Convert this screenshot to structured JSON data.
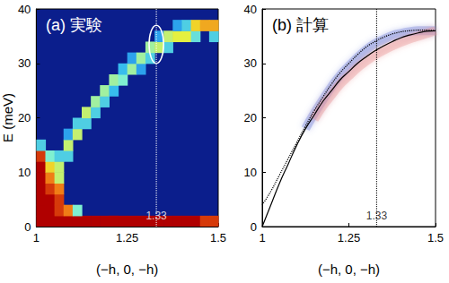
{
  "chart_data": [
    {
      "type": "heatmap",
      "title": "(a) 実験",
      "x_label": "(−h, 0, −h)",
      "y_label": "E (meV)",
      "xlim": [
        1,
        1.5
      ],
      "xticks": [
        1,
        1.25,
        1.5
      ],
      "ylim": [
        0,
        40
      ],
      "yticks": [
        0,
        10,
        20,
        30,
        40
      ],
      "color_range": [
        0,
        10
      ],
      "cells": [
        [
          1.0125,
          1,
          10
        ],
        [
          1.0375,
          1,
          10
        ],
        [
          1.0625,
          1,
          10
        ],
        [
          1.0875,
          1,
          10
        ],
        [
          1.1125,
          1,
          10
        ],
        [
          1.1375,
          1,
          10
        ],
        [
          1.1625,
          1,
          10
        ],
        [
          1.1875,
          1,
          10
        ],
        [
          1.2125,
          1,
          10
        ],
        [
          1.2375,
          1,
          10
        ],
        [
          1.2625,
          1,
          10
        ],
        [
          1.2875,
          1,
          10
        ],
        [
          1.3125,
          1,
          10
        ],
        [
          1.3375,
          1,
          10
        ],
        [
          1.3625,
          1,
          10
        ],
        [
          1.3875,
          1,
          10
        ],
        [
          1.4125,
          1,
          10
        ],
        [
          1.4375,
          1,
          10
        ],
        [
          1.4625,
          1,
          9
        ],
        [
          1.4875,
          1,
          9
        ],
        [
          1.0125,
          3,
          10
        ],
        [
          1.0125,
          5,
          10
        ],
        [
          1.0125,
          7,
          10
        ],
        [
          1.0125,
          9,
          10
        ],
        [
          1.0125,
          11,
          10
        ],
        [
          1.0125,
          13,
          9
        ],
        [
          1.0125,
          15,
          4
        ],
        [
          1.0375,
          3,
          10
        ],
        [
          1.0375,
          5,
          10
        ],
        [
          1.0375,
          7,
          9
        ],
        [
          1.0375,
          9,
          8
        ],
        [
          1.0375,
          11,
          7
        ],
        [
          1.0375,
          13,
          5
        ],
        [
          1.0625,
          3,
          9
        ],
        [
          1.0625,
          5,
          9
        ],
        [
          1.0625,
          7,
          8
        ],
        [
          1.0625,
          9,
          6
        ],
        [
          1.0625,
          11,
          6
        ],
        [
          1.0625,
          13,
          4
        ],
        [
          1.0875,
          3,
          8
        ],
        [
          1.0875,
          13,
          4
        ],
        [
          1.0875,
          15,
          6
        ],
        [
          1.0875,
          17,
          3
        ],
        [
          1.1125,
          3,
          5
        ],
        [
          1.1125,
          17,
          6
        ],
        [
          1.1125,
          19,
          4
        ],
        [
          1.1375,
          19,
          4
        ],
        [
          1.1375,
          21,
          6
        ],
        [
          1.1625,
          21,
          4
        ],
        [
          1.1625,
          23,
          5.5
        ],
        [
          1.1875,
          23,
          4
        ],
        [
          1.1875,
          25,
          5.5
        ],
        [
          1.2125,
          25,
          3.5
        ],
        [
          1.2125,
          27,
          5.5
        ],
        [
          1.2375,
          27,
          5
        ],
        [
          1.2375,
          29,
          3.5
        ],
        [
          1.2625,
          29,
          5.5
        ],
        [
          1.2625,
          31,
          3
        ],
        [
          1.2875,
          29,
          3
        ],
        [
          1.2875,
          31,
          5.5
        ],
        [
          1.3125,
          31,
          4
        ],
        [
          1.3125,
          33,
          5.5
        ],
        [
          1.3375,
          33,
          6
        ],
        [
          1.3375,
          35,
          3
        ],
        [
          1.3625,
          33,
          4
        ],
        [
          1.3625,
          35,
          6
        ],
        [
          1.3875,
          35,
          6.5
        ],
        [
          1.3875,
          37,
          3
        ],
        [
          1.4125,
          35,
          6.5
        ],
        [
          1.4125,
          37,
          4
        ],
        [
          1.4375,
          35,
          4.5
        ],
        [
          1.4375,
          37,
          7
        ],
        [
          1.4625,
          37,
          7.5
        ],
        [
          1.4875,
          35,
          4
        ],
        [
          1.4875,
          37,
          7.5
        ]
      ],
      "vline": {
        "x": 1.33,
        "color": "#ffffff"
      },
      "ellipse": {
        "x": 1.33,
        "y": 33.5,
        "width": 0.04,
        "height": 7,
        "color": "#ffffff"
      }
    },
    {
      "type": "line",
      "title": "(b) 計算",
      "x_label": "(−h, 0, −h)",
      "xlim": [
        1,
        1.5
      ],
      "xticks": [
        1,
        1.25,
        1.5
      ],
      "ylim": [
        0,
        40
      ],
      "yticks": [
        0,
        10,
        20,
        30,
        40
      ],
      "x": [
        1,
        1.025,
        1.05,
        1.075,
        1.1,
        1.125,
        1.15,
        1.175,
        1.2,
        1.225,
        1.25,
        1.275,
        1.3,
        1.325,
        1.35,
        1.375,
        1.4,
        1.425,
        1.45,
        1.475,
        1.5
      ],
      "series": [
        {
          "color": "#6f7fd8",
          "line_style": "band",
          "values": [
            null,
            null,
            null,
            null,
            null,
            18,
            20.8,
            23.3,
            25.7,
            27.8,
            29.5,
            31.1,
            32.5,
            33.6,
            34.4,
            35.1,
            35.5,
            35.8,
            36,
            36,
            36
          ]
        },
        {
          "color": "#e88f8f",
          "line_style": "band",
          "values": [
            null,
            null,
            null,
            null,
            null,
            null,
            19.7,
            22.2,
            24.2,
            26.2,
            27.7,
            29.2,
            30.4,
            31.5,
            32.4,
            33.2,
            33.9,
            34.5,
            35,
            35.5,
            36
          ]
        },
        {
          "color": "#000000",
          "line_style": "dotted",
          "values": [
            4,
            6.5,
            9.5,
            12.5,
            15.5,
            18.5,
            21.3,
            23.8,
            26.2,
            28.3,
            30,
            31.6,
            33,
            34,
            34.8,
            35.4,
            35.8,
            36,
            36.1,
            36.1,
            36
          ]
        },
        {
          "color": "#000000",
          "line_style": "solid",
          "values": [
            0,
            4,
            8,
            11.5,
            15,
            18,
            20.5,
            23,
            25,
            27,
            28.5,
            30,
            31.2,
            32.3,
            33.2,
            34,
            34.7,
            35.2,
            35.6,
            35.9,
            36
          ]
        }
      ],
      "vline": {
        "x": 1.33,
        "color": "#000000"
      }
    }
  ]
}
